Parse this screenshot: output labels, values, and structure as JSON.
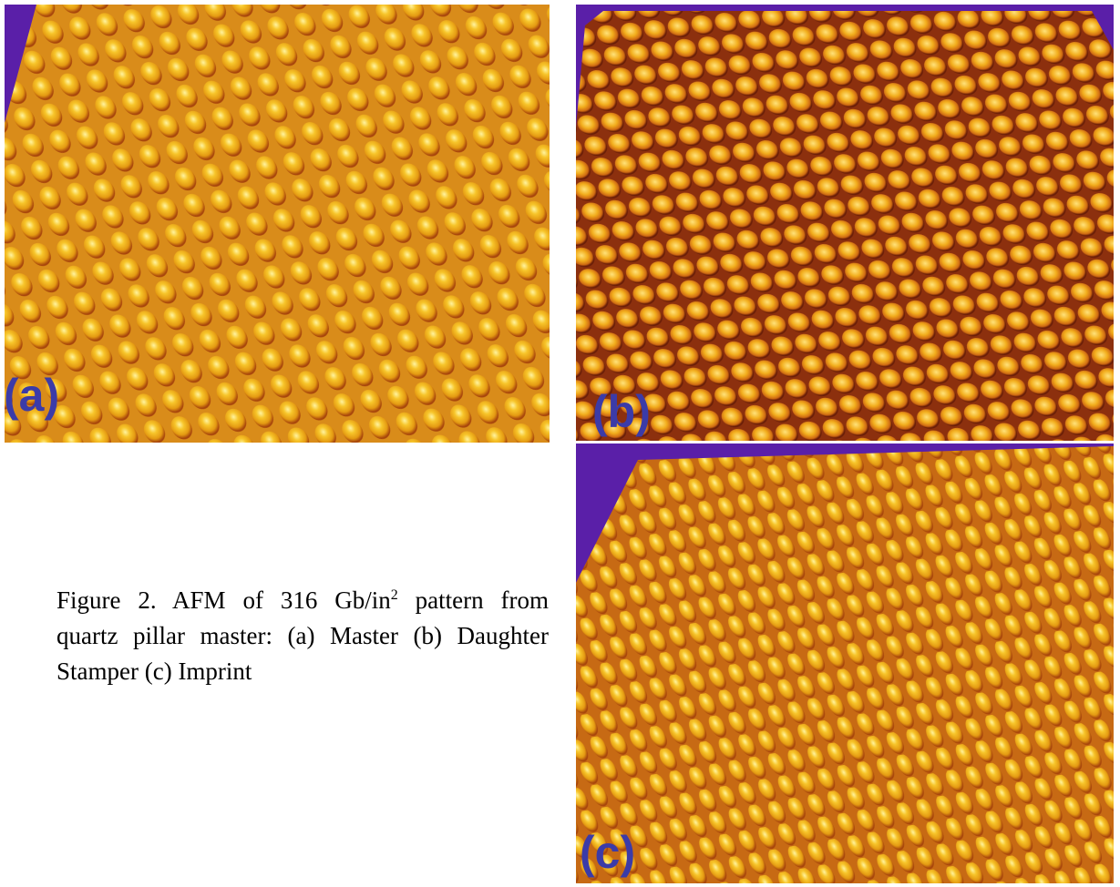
{
  "figure": {
    "panels": [
      {
        "label": "(a)"
      },
      {
        "label": "(b)"
      },
      {
        "label": "(c)"
      }
    ],
    "caption": {
      "line1_before": "Figure 2. AFM of 316 Gb/in",
      "superscript": "2",
      "line1_after": " pattern from",
      "line2": "quartz pillar master: (a) Master (b) Daughter",
      "line3": "Stamper (c) Imprint"
    }
  }
}
